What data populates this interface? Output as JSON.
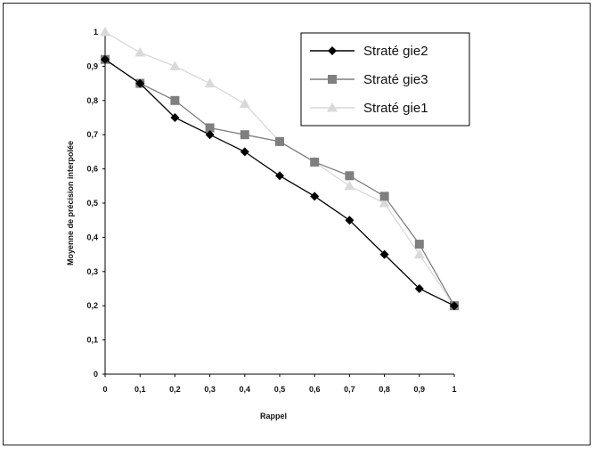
{
  "chart_data": {
    "type": "line",
    "title": "",
    "xlabel": "Rappel",
    "ylabel": "Moyenne de précision interpolée",
    "xlim": [
      0,
      1
    ],
    "ylim": [
      0,
      1
    ],
    "x": [
      0,
      0.1,
      0.2,
      0.3,
      0.4,
      0.5,
      0.6,
      0.7,
      0.8,
      0.9,
      1
    ],
    "x_tick_labels": [
      "0",
      "0,1",
      "0,2",
      "0,3",
      "0,4",
      "0,5",
      "0,6",
      "0,7",
      "0,8",
      "0,9",
      "1"
    ],
    "y_ticks": [
      0,
      0.1,
      0.2,
      0.3,
      0.4,
      0.5,
      0.6,
      0.7,
      0.8,
      0.9,
      1
    ],
    "y_tick_labels": [
      "0",
      "0,1",
      "0,2",
      "0,3",
      "0,4",
      "0,5",
      "0,6",
      "0,7",
      "0,8",
      "0,9",
      "1"
    ],
    "grid": false,
    "legend_position": "top-right",
    "series": [
      {
        "name": "Straté gie2",
        "marker": "diamond",
        "color": "#000000",
        "values": [
          0.92,
          0.85,
          0.75,
          0.7,
          0.65,
          0.58,
          0.52,
          0.45,
          0.35,
          0.25,
          0.2
        ]
      },
      {
        "name": "Straté gie3",
        "marker": "square",
        "color": "#7f7f7f",
        "values": [
          0.92,
          0.85,
          0.8,
          0.72,
          0.7,
          0.68,
          0.62,
          0.58,
          0.52,
          0.38,
          0.2
        ]
      },
      {
        "name": "Straté gie1",
        "marker": "triangle",
        "color": "#d9d9d9",
        "values": [
          1.0,
          0.94,
          0.9,
          0.85,
          0.79,
          0.68,
          0.62,
          0.55,
          0.5,
          0.35,
          0.2
        ]
      }
    ]
  }
}
